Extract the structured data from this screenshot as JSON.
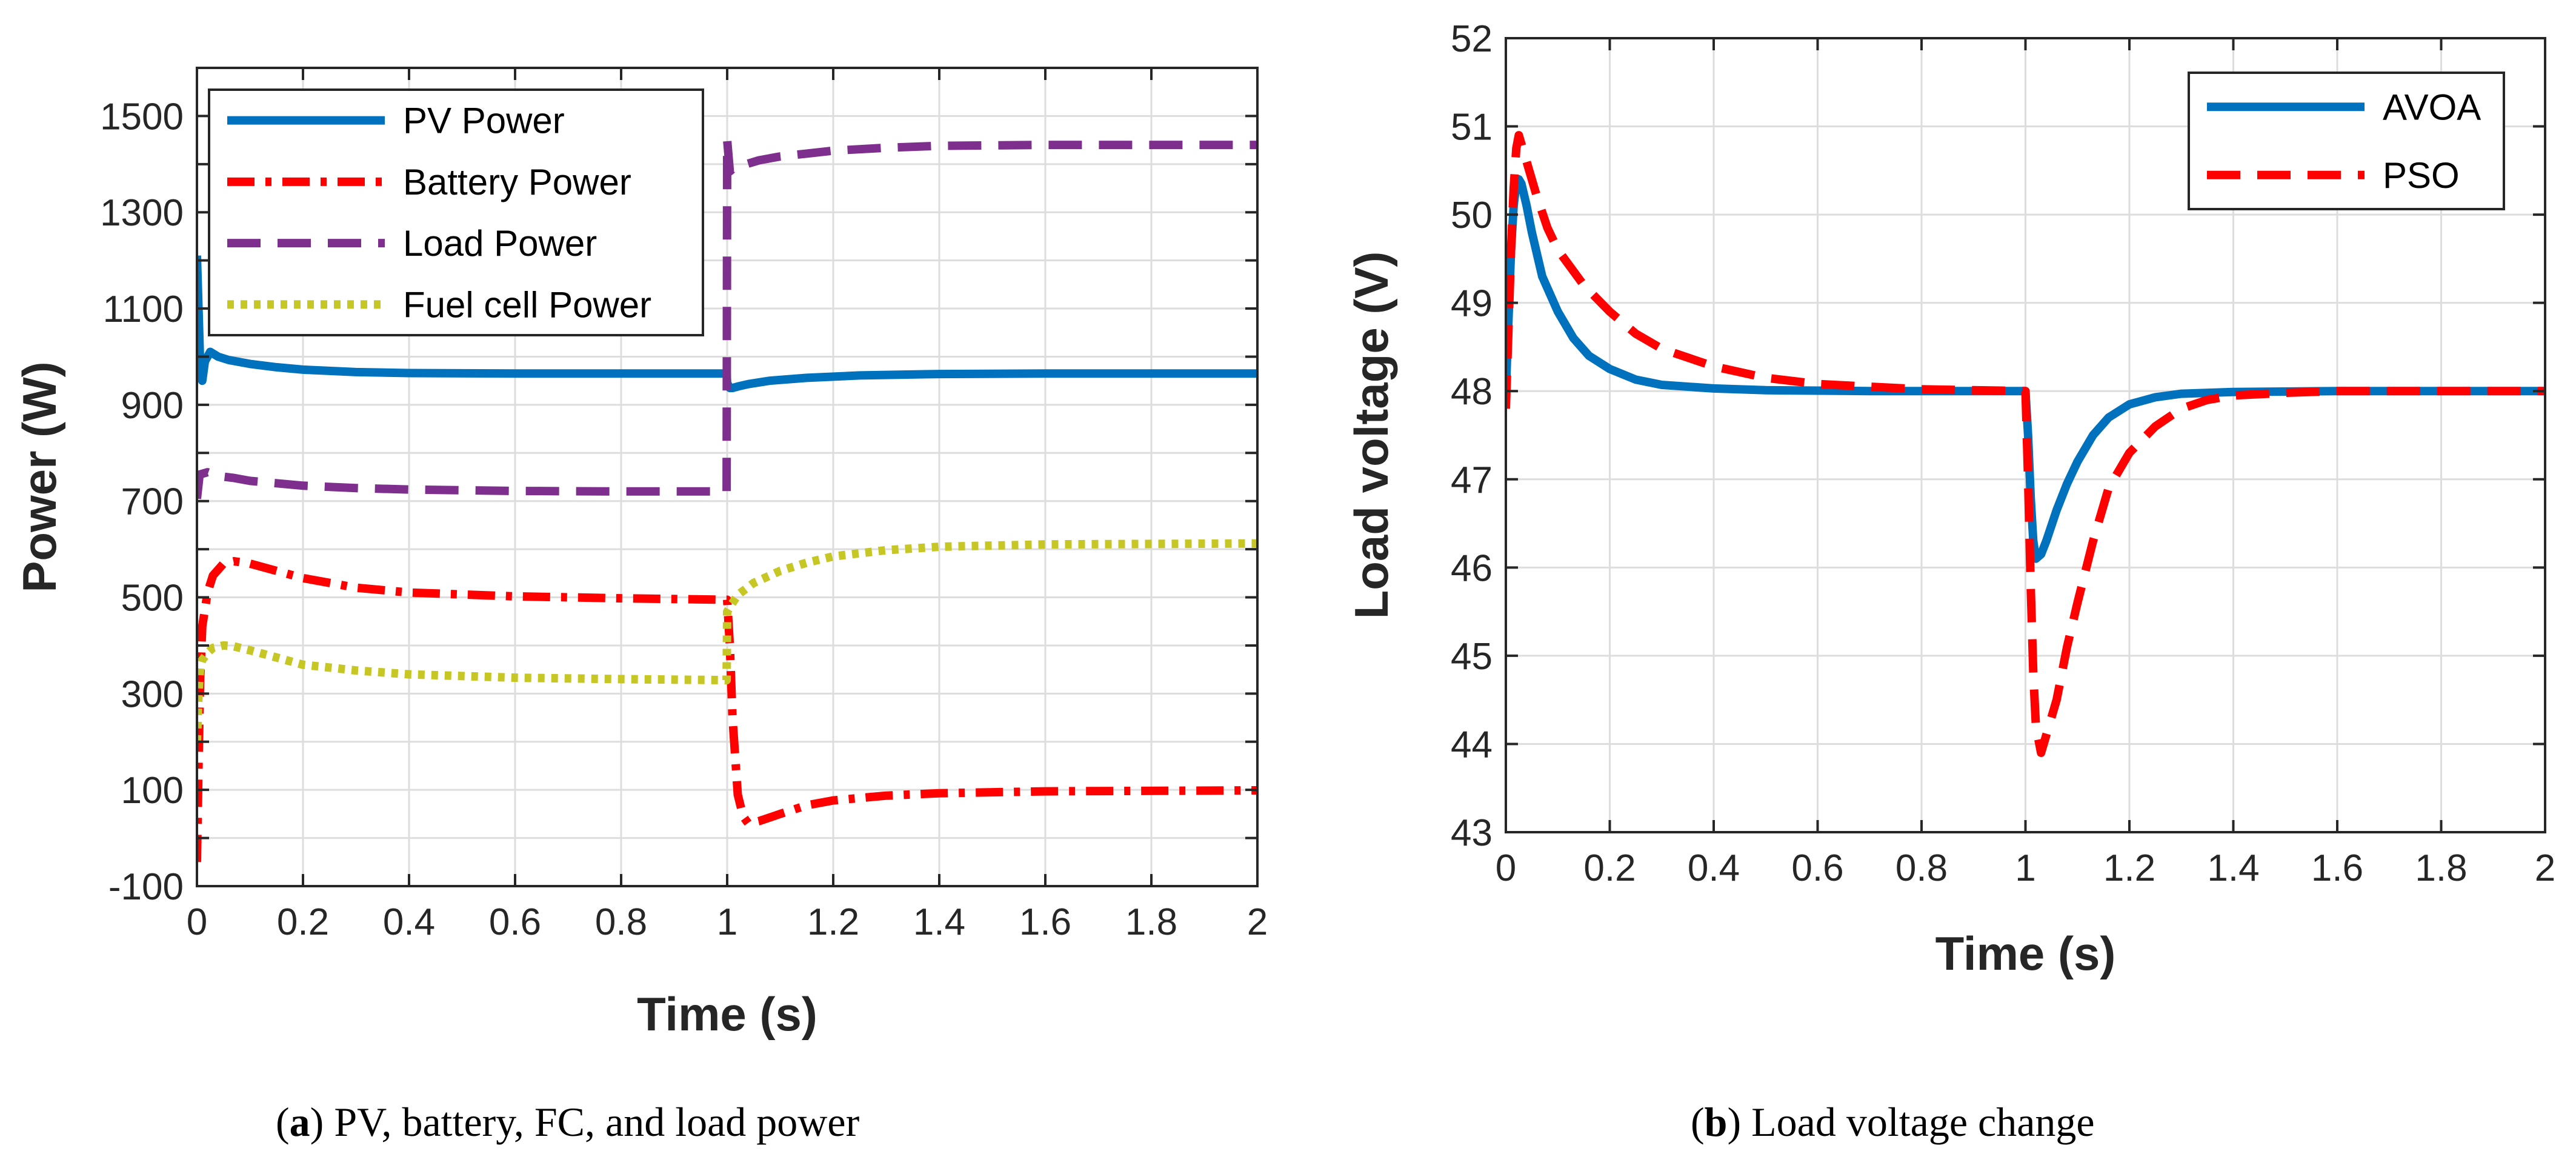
{
  "chart_data": [
    {
      "type": "line",
      "id": "a",
      "xlabel": "Time (s)",
      "ylabel": "Power (W)",
      "xlim": [
        0,
        2
      ],
      "ylim": [
        -100,
        1600
      ],
      "xticks": [
        0,
        0.2,
        0.4,
        0.6,
        0.8,
        1,
        1.2,
        1.4,
        1.6,
        1.8,
        2
      ],
      "xtick_labels": [
        "0",
        "0.2",
        "0.4",
        "0.6",
        "0.8",
        "1",
        "1.2",
        "1.4",
        "1.6",
        "1.8",
        "2"
      ],
      "yticks": [
        -100,
        0,
        100,
        200,
        300,
        400,
        500,
        600,
        700,
        800,
        900,
        1000,
        1100,
        1200,
        1300,
        1400,
        1500,
        1600
      ],
      "ytick_labels": [
        "-100",
        "100",
        "300",
        "500",
        "700",
        "900",
        "1100",
        "1300",
        "1500"
      ],
      "ytick_label_values": [
        -100,
        100,
        300,
        500,
        700,
        900,
        1100,
        1300,
        1500
      ],
      "grid": true,
      "legend_position": "top-left",
      "series": [
        {
          "name": "PV Power",
          "color": "#0072BD",
          "style": "solid",
          "x": [
            0,
            0.003,
            0.006,
            0.01,
            0.015,
            0.025,
            0.04,
            0.06,
            0.1,
            0.15,
            0.2,
            0.3,
            0.4,
            0.6,
            0.8,
            0.999,
            1.0,
            1.005,
            1.01,
            1.02,
            1.04,
            1.08,
            1.15,
            1.25,
            1.4,
            1.6,
            1.8,
            2.0
          ],
          "y": [
            1210,
            1100,
            985,
            950,
            990,
            1010,
            1000,
            993,
            985,
            978,
            973,
            968,
            966,
            965,
            965,
            965,
            945,
            935,
            935,
            938,
            943,
            950,
            956,
            961,
            964,
            965,
            965,
            965
          ]
        },
        {
          "name": "Battery Power",
          "color": "#FF0000",
          "style": "dashdot",
          "x": [
            0,
            0.003,
            0.006,
            0.01,
            0.02,
            0.03,
            0.05,
            0.07,
            0.1,
            0.15,
            0.2,
            0.3,
            0.4,
            0.6,
            0.8,
            1.0,
            1.005,
            1.01,
            1.02,
            1.03,
            1.04,
            1.06,
            1.1,
            1.15,
            1.2,
            1.3,
            1.4,
            1.6,
            1.8,
            2.0
          ],
          "y": [
            -50,
            150,
            330,
            440,
            510,
            545,
            570,
            575,
            570,
            555,
            540,
            520,
            510,
            502,
            498,
            495,
            400,
            250,
            90,
            45,
            30,
            35,
            50,
            68,
            78,
            88,
            93,
            97,
            98,
            99
          ]
        },
        {
          "name": "Load Power",
          "color": "#7E2F8E",
          "style": "dashed",
          "x": [
            0,
            0.005,
            0.02,
            0.04,
            0.07,
            0.1,
            0.15,
            0.2,
            0.3,
            0.4,
            0.6,
            0.8,
            0.999,
            1.0,
            1.005,
            1.01,
            1.03,
            1.06,
            1.1,
            1.15,
            1.2,
            1.3,
            1.4,
            1.6,
            1.8,
            2.0
          ],
          "y": [
            705,
            755,
            760,
            752,
            748,
            742,
            737,
            732,
            727,
            724,
            721,
            720,
            720,
            1450,
            1385,
            1390,
            1398,
            1408,
            1416,
            1422,
            1428,
            1434,
            1438,
            1440,
            1440,
            1440
          ]
        },
        {
          "name": "Fuel cell Power",
          "color": "#C6C625",
          "style": "dotted",
          "x": [
            0,
            0.003,
            0.006,
            0.01,
            0.02,
            0.03,
            0.05,
            0.07,
            0.1,
            0.15,
            0.2,
            0.3,
            0.4,
            0.6,
            0.8,
            0.999,
            1.0,
            1.005,
            1.02,
            1.05,
            1.1,
            1.15,
            1.2,
            1.3,
            1.4,
            1.6,
            1.8,
            2.0
          ],
          "y": [
            200,
            300,
            355,
            370,
            385,
            395,
            400,
            398,
            390,
            375,
            360,
            348,
            340,
            333,
            330,
            328,
            470,
            480,
            505,
            530,
            555,
            572,
            585,
            598,
            605,
            610,
            611,
            612
          ]
        }
      ]
    },
    {
      "type": "line",
      "id": "b",
      "xlabel": "Time (s)",
      "ylabel": "Load voltage (V)",
      "xlim": [
        0,
        2
      ],
      "ylim": [
        43,
        52
      ],
      "xticks": [
        0,
        0.2,
        0.4,
        0.6,
        0.8,
        1,
        1.2,
        1.4,
        1.6,
        1.8,
        2
      ],
      "xtick_labels": [
        "0",
        "0.2",
        "0.4",
        "0.6",
        "0.8",
        "1",
        "1.2",
        "1.4",
        "1.6",
        "1.8",
        "2"
      ],
      "yticks": [
        43,
        44,
        45,
        46,
        47,
        48,
        49,
        50,
        51,
        52
      ],
      "ytick_labels": [
        "43",
        "44",
        "45",
        "46",
        "47",
        "48",
        "49",
        "50",
        "51",
        "52"
      ],
      "ytick_label_values": [
        43,
        44,
        45,
        46,
        47,
        48,
        49,
        50,
        51,
        52
      ],
      "grid": true,
      "legend_position": "top-right",
      "series": [
        {
          "name": "AVOA",
          "color": "#0072BD",
          "style": "solid",
          "x": [
            0,
            0.005,
            0.01,
            0.015,
            0.02,
            0.025,
            0.03,
            0.04,
            0.05,
            0.07,
            0.1,
            0.13,
            0.16,
            0.2,
            0.25,
            0.3,
            0.4,
            0.5,
            0.7,
            0.9,
            1.0,
            1.005,
            1.01,
            1.015,
            1.02,
            1.03,
            1.04,
            1.06,
            1.08,
            1.1,
            1.13,
            1.16,
            1.2,
            1.25,
            1.3,
            1.4,
            1.6,
            1.8,
            2.0
          ],
          "y": [
            48.0,
            48.8,
            49.6,
            50.1,
            50.35,
            50.4,
            50.35,
            50.1,
            49.8,
            49.3,
            48.9,
            48.6,
            48.4,
            48.25,
            48.13,
            48.07,
            48.03,
            48.01,
            48.0,
            48.0,
            48.0,
            47.5,
            46.8,
            46.3,
            46.1,
            46.15,
            46.3,
            46.65,
            46.95,
            47.2,
            47.5,
            47.7,
            47.85,
            47.93,
            47.97,
            47.99,
            48.0,
            48.0,
            48.0
          ]
        },
        {
          "name": "PSO",
          "color": "#FF0000",
          "style": "dashed",
          "x": [
            0,
            0.005,
            0.01,
            0.015,
            0.02,
            0.025,
            0.03,
            0.04,
            0.06,
            0.08,
            0.1,
            0.15,
            0.2,
            0.25,
            0.3,
            0.4,
            0.5,
            0.6,
            0.8,
            1.0,
            1.005,
            1.01,
            1.015,
            1.02,
            1.03,
            1.04,
            1.06,
            1.08,
            1.1,
            1.13,
            1.16,
            1.2,
            1.25,
            1.3,
            1.35,
            1.4,
            1.5,
            1.6,
            1.8,
            2.0
          ],
          "y": [
            47.8,
            48.7,
            49.6,
            50.3,
            50.75,
            50.9,
            50.8,
            50.6,
            50.2,
            49.85,
            49.6,
            49.2,
            48.9,
            48.65,
            48.48,
            48.28,
            48.15,
            48.08,
            48.02,
            48.0,
            47.0,
            45.8,
            44.8,
            44.2,
            43.9,
            44.1,
            44.5,
            45.1,
            45.6,
            46.3,
            46.9,
            47.3,
            47.6,
            47.8,
            47.9,
            47.95,
            47.98,
            48.0,
            48.0,
            48.0
          ]
        }
      ]
    }
  ],
  "captions": {
    "a": {
      "label": "a",
      "text": " PV, battery, FC, and load power"
    },
    "b": {
      "label": "b",
      "text": " Load voltage change"
    }
  }
}
